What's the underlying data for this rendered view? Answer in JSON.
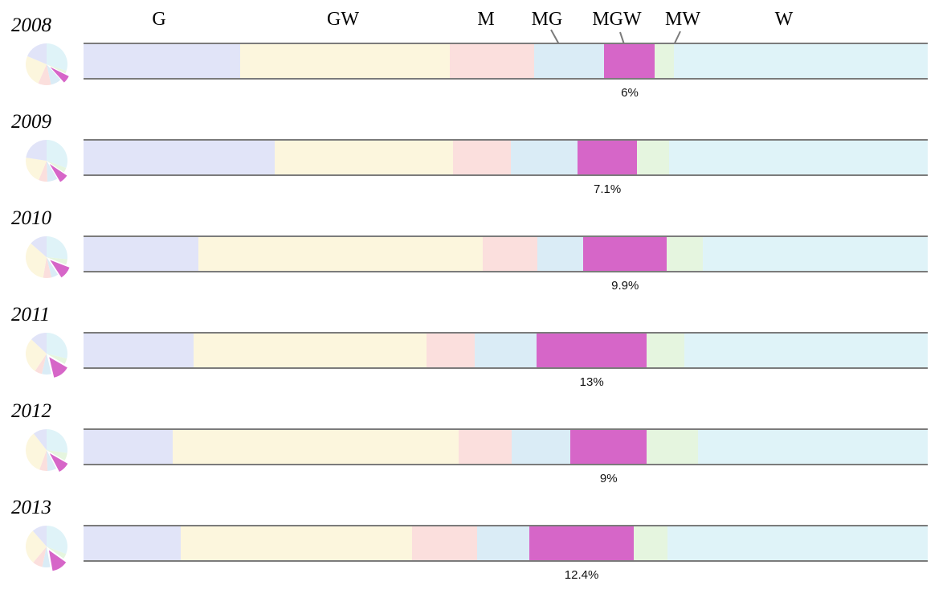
{
  "chart_data": {
    "type": "bar",
    "subtype": "horizontal-stacked-100pct-with-pie-insets",
    "title": "",
    "xlabel": "",
    "ylabel": "",
    "unit": "percent",
    "grid": false,
    "legend_position": "top-inline-labels",
    "categories": [
      "G",
      "GW",
      "M",
      "MG",
      "MGW",
      "MW",
      "W"
    ],
    "highlight_category": "MGW",
    "exploded_slice": "MGW",
    "pie_order_clockwise_from_top": [
      "W",
      "MW",
      "MGW",
      "MG",
      "M",
      "GW",
      "G"
    ],
    "colors": {
      "G": "#E1E4F8",
      "GW": "#FCF6DD",
      "M": "#FBDFDD",
      "MG": "#DAECF6",
      "MGW": "#D666C8",
      "MW": "#E5F5DF",
      "W": "#DFF3F8"
    },
    "axis_line_color": "#7b7b7b",
    "rows": [
      {
        "year": "2008",
        "values": [
          18.6,
          24.8,
          10.0,
          8.3,
          6.0,
          2.2,
          30.1
        ],
        "highlight_label": "6%"
      },
      {
        "year": "2009",
        "values": [
          22.6,
          21.2,
          6.8,
          7.9,
          7.1,
          3.8,
          30.6
        ],
        "highlight_label": "7.1%"
      },
      {
        "year": "2010",
        "values": [
          13.6,
          33.7,
          6.5,
          5.4,
          9.9,
          4.3,
          26.6
        ],
        "highlight_label": "9.9%"
      },
      {
        "year": "2011",
        "values": [
          13.0,
          27.6,
          5.7,
          7.4,
          13.0,
          4.5,
          28.8
        ],
        "highlight_label": "13%"
      },
      {
        "year": "2012",
        "values": [
          10.6,
          33.8,
          6.3,
          7.0,
          9.0,
          6.1,
          27.2
        ],
        "highlight_label": "9%"
      },
      {
        "year": "2013",
        "values": [
          11.5,
          27.4,
          7.7,
          6.2,
          12.4,
          4.0,
          30.8
        ],
        "highlight_label": "12.4%"
      }
    ]
  }
}
